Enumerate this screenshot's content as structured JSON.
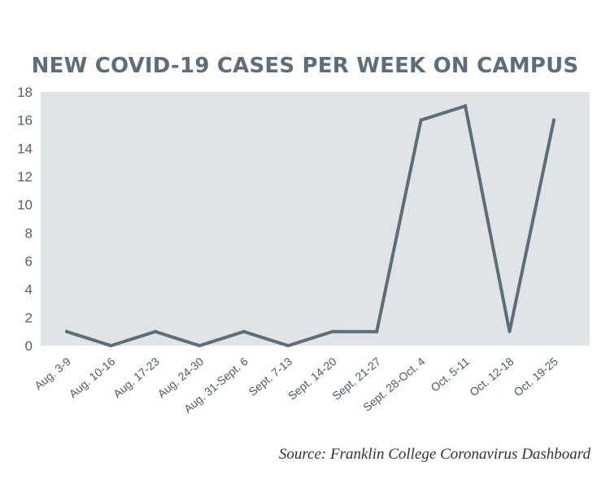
{
  "chart_data": {
    "type": "line",
    "title": "NEW COVID-19 CASES PER WEEK ON CAMPUS",
    "categories": [
      "Aug. 3-9",
      "Aug. 10-16",
      "Aug. 17-23",
      "Aug. 24-30",
      "Aug. 31-Sept. 6",
      "Sept. 7-13",
      "Sept. 14-20",
      "Sept. 21-27",
      "Sept. 28-Oct. 4",
      "Oct. 5-11",
      "Oct. 12-18",
      "Oct. 19-25"
    ],
    "series": [
      {
        "values": [
          1,
          0,
          1,
          0,
          1,
          0,
          1,
          1,
          16,
          17,
          1,
          16
        ]
      }
    ],
    "yticks": [
      "0",
      "2",
      "4",
      "6",
      "8",
      "10",
      "12",
      "14",
      "16",
      "18"
    ],
    "ylim": [
      0,
      18
    ],
    "xlabel": "",
    "ylabel": "",
    "grid": false,
    "plot_background": "#e1e4e7",
    "line_color": "#5e6e78",
    "source": "Source: Franklin College Coronavirus Dashboard"
  }
}
